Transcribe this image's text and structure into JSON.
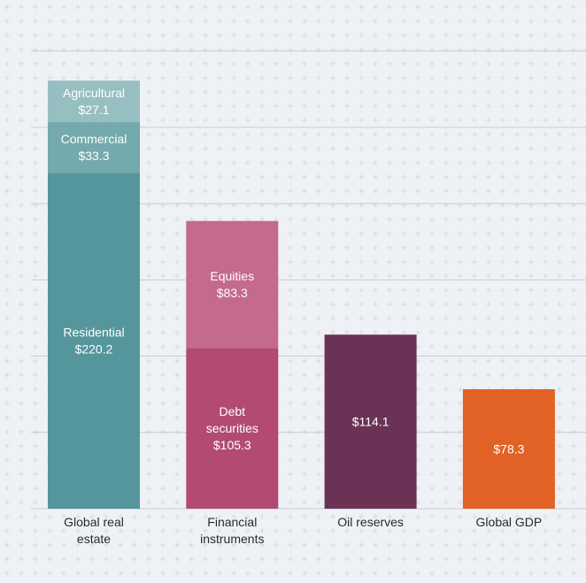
{
  "chart_data": {
    "type": "bar",
    "stacked": true,
    "title": "",
    "xlabel": "",
    "ylabel": "",
    "ylim": [
      0,
      320
    ],
    "grid": true,
    "legend": "none",
    "categories": [
      [
        "Global real",
        "estate"
      ],
      [
        "Financial",
        "instruments"
      ],
      [
        "Oil reserves"
      ],
      [
        "Global GDP"
      ]
    ],
    "stacks": [
      {
        "segments": [
          {
            "name": "Residential",
            "value": 220.2,
            "value_label": "$220.2",
            "color": "#54969b"
          },
          {
            "name": "Commercial",
            "value": 33.3,
            "value_label": "$33.3",
            "color": "#74a9ad"
          },
          {
            "name": "Agricultural",
            "value": 27.1,
            "value_label": "$27.1",
            "color": "#97bec1"
          }
        ]
      },
      {
        "segments": [
          {
            "name": "Debt securities",
            "label_lines": [
              "Debt",
              "securities"
            ],
            "value": 105.3,
            "value_label": "$105.3",
            "color": "#b24a74"
          },
          {
            "name": "Equities",
            "value": 83.3,
            "value_label": "$83.3",
            "color": "#c46a8e"
          }
        ]
      },
      {
        "segments": [
          {
            "name": "",
            "value": 114.1,
            "value_label": "$114.1",
            "color": "#6a3355"
          }
        ]
      },
      {
        "segments": [
          {
            "name": "",
            "value": 78.3,
            "value_label": "$78.3",
            "color": "#e26226"
          }
        ]
      }
    ],
    "colors": {
      "background": "#eef1f5",
      "gridline": "#c8ccd3",
      "text": "#2a2a2a",
      "segment_text": "#ffffff"
    }
  }
}
